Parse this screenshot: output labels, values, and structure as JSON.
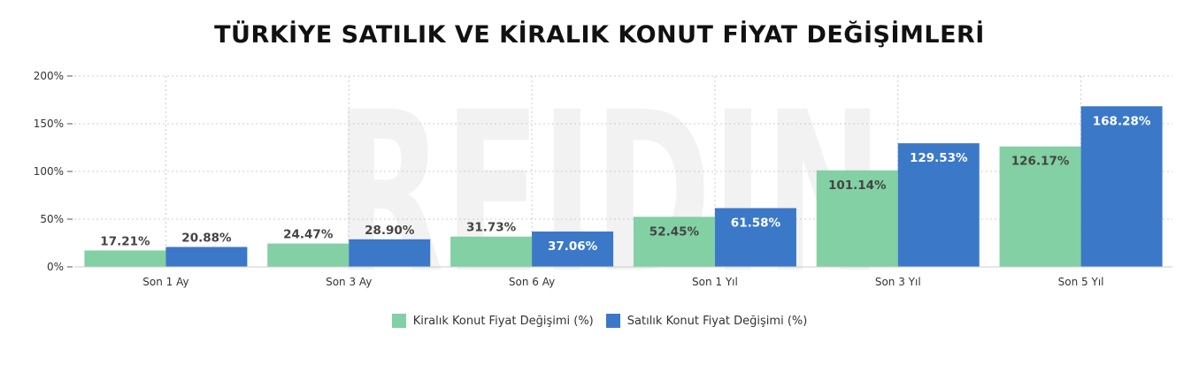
{
  "chart_data": {
    "type": "bar",
    "title": "TÜRKİYE SATILIK VE KİRALIK KONUT FİYAT DEĞİŞİMLERİ",
    "watermark": "REIDIN",
    "categories": [
      "Son 1 Ay",
      "Son 3 Ay",
      "Son 6 Ay",
      "Son 1 Yıl",
      "Son 3 Yıl",
      "Son 5 Yıl"
    ],
    "series": [
      {
        "name": "Kiralık Konut Fiyat Değişimi (%)",
        "color": "#82d0a3",
        "values": [
          17.21,
          24.47,
          31.73,
          52.45,
          101.14,
          126.17
        ],
        "labels": [
          "17.21%",
          "24.47%",
          "31.73%",
          "52.45%",
          "101.14%",
          "126.17%"
        ]
      },
      {
        "name": "Satılık Konut Fiyat Değişimi (%)",
        "color": "#3b78c8",
        "values": [
          20.88,
          28.9,
          37.06,
          61.58,
          129.53,
          168.28
        ],
        "labels": [
          "20.88%",
          "28.90%",
          "37.06%",
          "61.58%",
          "129.53%",
          "168.28%"
        ]
      }
    ],
    "y_ticks": [
      0,
      50,
      100,
      150,
      200
    ],
    "y_tick_labels": [
      "0%",
      "50%",
      "100%",
      "150%",
      "200%"
    ],
    "ylim": [
      0,
      200
    ],
    "grid": true,
    "legend_position": "bottom"
  }
}
